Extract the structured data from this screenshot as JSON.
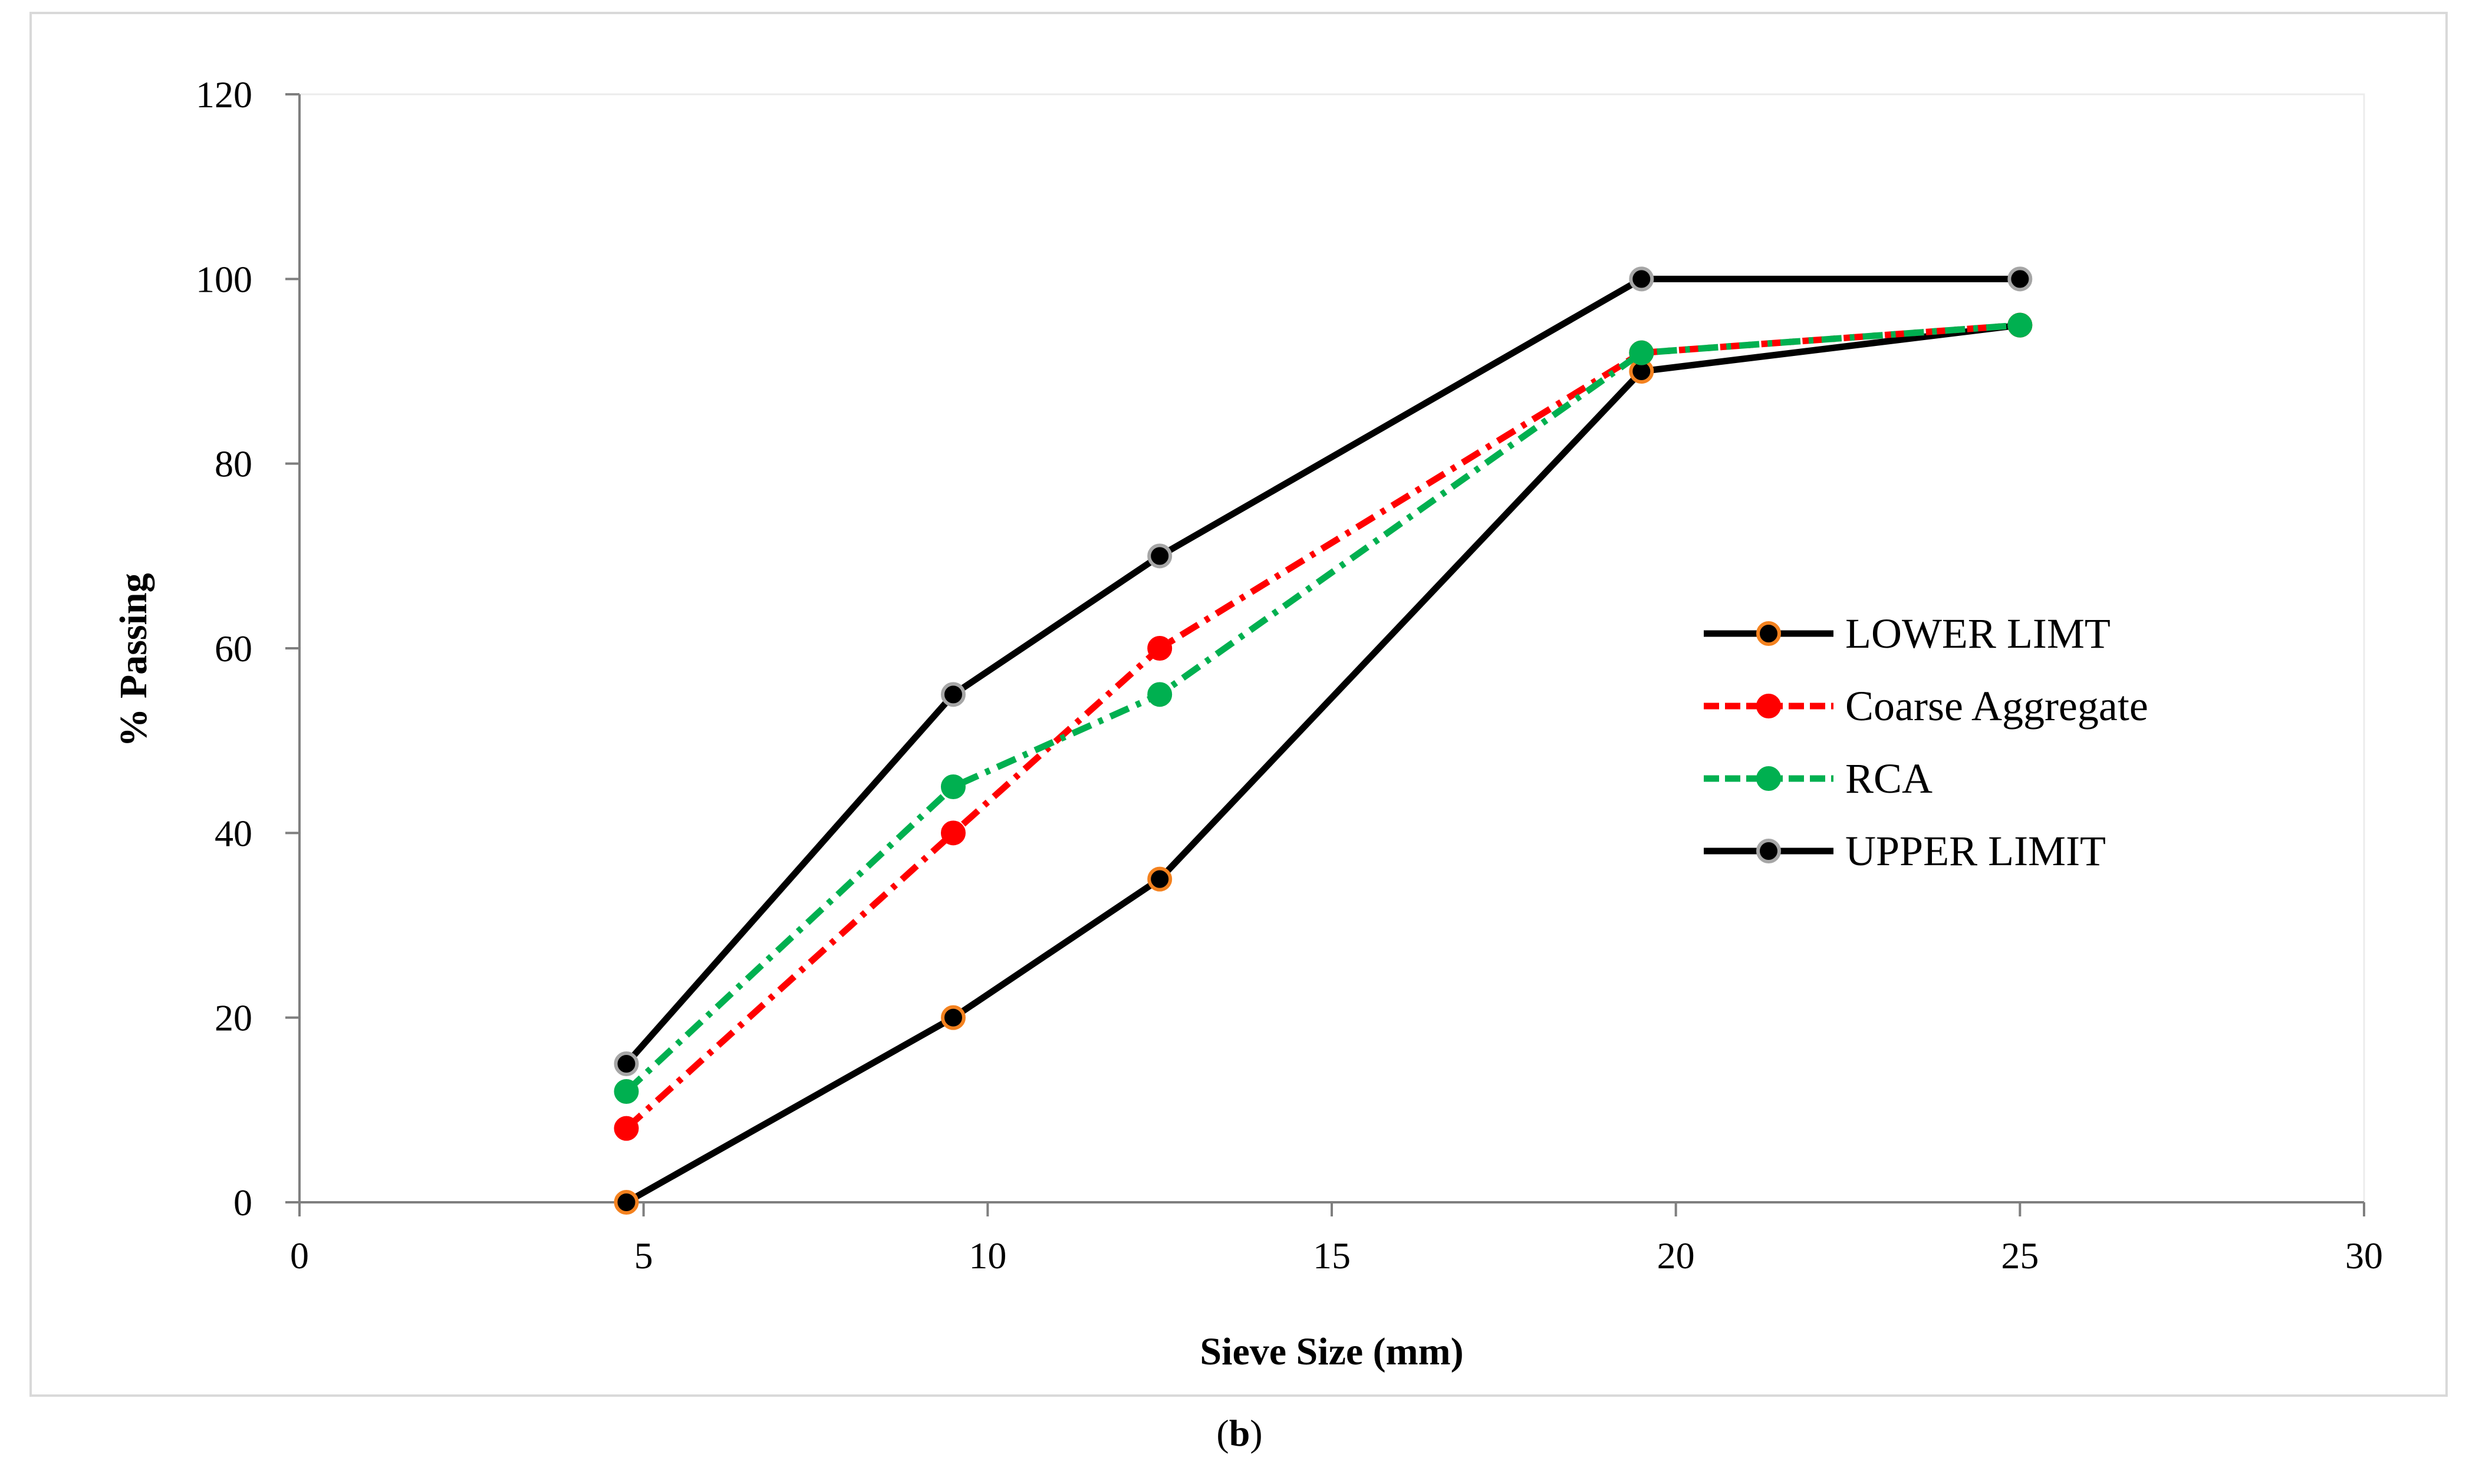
{
  "chart_data": {
    "type": "line",
    "title": "",
    "xlabel": "Sieve Size (mm)",
    "ylabel": "% Passing",
    "xlim": [
      0,
      30
    ],
    "ylim": [
      0,
      120
    ],
    "xticks": [
      0,
      5,
      10,
      15,
      20,
      25,
      30
    ],
    "yticks": [
      0,
      20,
      40,
      60,
      80,
      100,
      120
    ],
    "grid": false,
    "legend_position": "right",
    "series": [
      {
        "name": "LOWER LIMT",
        "x": [
          4.75,
          9.5,
          12.5,
          19.5,
          25
        ],
        "y": [
          0,
          20,
          35,
          90,
          95
        ],
        "color": "#000000",
        "marker_fill": "#000000",
        "marker_edge": "#f4821f",
        "dash": "solid"
      },
      {
        "name": "Coarse Aggregate",
        "x": [
          4.75,
          9.5,
          12.5,
          19.5,
          25
        ],
        "y": [
          8,
          40,
          60,
          92,
          95
        ],
        "color": "#ff0000",
        "marker_fill": "#ff0000",
        "marker_edge": "#ff0000",
        "dash": "dashdot"
      },
      {
        "name": "RCA",
        "x": [
          4.75,
          9.5,
          12.5,
          19.5,
          25
        ],
        "y": [
          12,
          45,
          55,
          92,
          95
        ],
        "color": "#00b050",
        "marker_fill": "#00b050",
        "marker_edge": "#00b050",
        "dash": "dashdot"
      },
      {
        "name": "UPPER LIMIT",
        "x": [
          4.75,
          9.5,
          12.5,
          19.5,
          25
        ],
        "y": [
          15,
          55,
          70,
          100,
          100
        ],
        "color": "#000000",
        "marker_fill": "#000000",
        "marker_edge": "#a6a6a6",
        "dash": "solid"
      }
    ]
  },
  "caption": {
    "open": "(",
    "letter": "b",
    "close": ")"
  }
}
